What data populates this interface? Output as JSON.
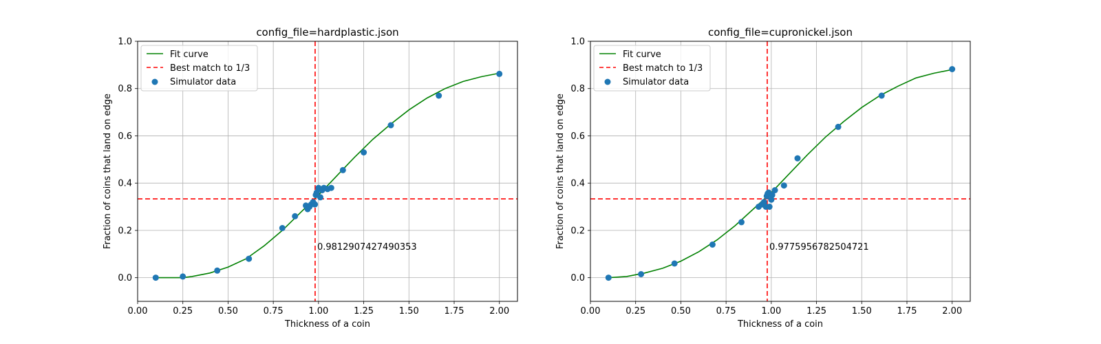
{
  "chart_data": [
    {
      "type": "scatter",
      "title": "config_file=hardplastic.json",
      "xlabel": "Thickness of a coin",
      "ylabel": "Fraction of coins that land on edge",
      "xlim": [
        0.0,
        2.1
      ],
      "ylim": [
        -0.1,
        1.0
      ],
      "xticks": [
        0.0,
        0.25,
        0.5,
        0.75,
        1.0,
        1.25,
        1.5,
        1.75,
        2.0
      ],
      "xtick_labels": [
        "0.00",
        "0.25",
        "0.50",
        "0.75",
        "1.00",
        "1.25",
        "1.50",
        "1.75",
        "2.00"
      ],
      "yticks": [
        0.0,
        0.2,
        0.4,
        0.6,
        0.8,
        1.0
      ],
      "ytick_labels": [
        "0.0",
        "0.2",
        "0.4",
        "0.6",
        "0.8",
        "1.0"
      ],
      "grid": true,
      "legend_position": "top-left",
      "legend": [
        "Fit curve",
        "Best match to 1/3",
        "Simulator data"
      ],
      "fit_curve": {
        "name": "Fit curve",
        "color": "#008000",
        "x": [
          0.1,
          0.2,
          0.25,
          0.3,
          0.4,
          0.5,
          0.6,
          0.7,
          0.8,
          0.9,
          1.0,
          1.1,
          1.2,
          1.3,
          1.4,
          1.5,
          1.6,
          1.7,
          1.8,
          1.9,
          2.0
        ],
        "y": [
          0.0,
          0.0,
          0.0,
          0.005,
          0.02,
          0.045,
          0.08,
          0.135,
          0.2,
          0.275,
          0.35,
          0.43,
          0.51,
          0.585,
          0.65,
          0.71,
          0.76,
          0.8,
          0.83,
          0.85,
          0.865
        ]
      },
      "best_match": {
        "name": "Best match to 1/3",
        "color": "#ff0000",
        "x": 0.9812907427490353,
        "y": 0.3333333333
      },
      "annotation": "0.9812907427490353",
      "simulator_data": {
        "name": "Simulator data",
        "color": "#1f77b4",
        "points": [
          [
            0.1,
            0.0
          ],
          [
            0.25,
            0.005
          ],
          [
            0.44,
            0.03
          ],
          [
            0.615,
            0.08
          ],
          [
            0.8,
            0.21
          ],
          [
            0.87,
            0.26
          ],
          [
            0.93,
            0.305
          ],
          [
            0.94,
            0.29
          ],
          [
            0.95,
            0.3
          ],
          [
            0.96,
            0.31
          ],
          [
            0.97,
            0.32
          ],
          [
            0.98,
            0.31
          ],
          [
            0.985,
            0.35
          ],
          [
            0.99,
            0.36
          ],
          [
            1.0,
            0.38
          ],
          [
            1.01,
            0.34
          ],
          [
            1.02,
            0.37
          ],
          [
            1.03,
            0.38
          ],
          [
            1.05,
            0.375
          ],
          [
            1.07,
            0.38
          ],
          [
            1.135,
            0.455
          ],
          [
            1.25,
            0.53
          ],
          [
            1.4,
            0.645
          ],
          [
            1.665,
            0.77
          ],
          [
            2.0,
            0.862
          ]
        ]
      }
    },
    {
      "type": "scatter",
      "title": "config_file=cupronickel.json",
      "xlabel": "Thickness of a coin",
      "ylabel": "Fraction of coins that land on edge",
      "xlim": [
        0.0,
        2.1
      ],
      "ylim": [
        -0.1,
        1.0
      ],
      "xticks": [
        0.0,
        0.25,
        0.5,
        0.75,
        1.0,
        1.25,
        1.5,
        1.75,
        2.0
      ],
      "xtick_labels": [
        "0.00",
        "0.25",
        "0.50",
        "0.75",
        "1.00",
        "1.25",
        "1.50",
        "1.75",
        "2.00"
      ],
      "yticks": [
        0.0,
        0.2,
        0.4,
        0.6,
        0.8,
        1.0
      ],
      "ytick_labels": [
        "0.0",
        "0.2",
        "0.4",
        "0.6",
        "0.8",
        "1.0"
      ],
      "grid": true,
      "legend_position": "top-left",
      "legend": [
        "Fit curve",
        "Best match to 1/3",
        "Simulator data"
      ],
      "fit_curve": {
        "name": "Fit curve",
        "color": "#008000",
        "x": [
          0.1,
          0.2,
          0.3,
          0.4,
          0.5,
          0.6,
          0.7,
          0.8,
          0.9,
          1.0,
          1.1,
          1.2,
          1.3,
          1.4,
          1.5,
          1.6,
          1.7,
          1.8,
          1.9,
          2.0
        ],
        "y": [
          0.0,
          0.005,
          0.02,
          0.04,
          0.07,
          0.11,
          0.16,
          0.22,
          0.29,
          0.36,
          0.44,
          0.52,
          0.595,
          0.66,
          0.72,
          0.77,
          0.81,
          0.845,
          0.865,
          0.88
        ]
      },
      "best_match": {
        "name": "Best match to 1/3",
        "color": "#ff0000",
        "x": 0.9775956782504721,
        "y": 0.3333333333
      },
      "annotation": "0.9775956782504721",
      "simulator_data": {
        "name": "Simulator data",
        "color": "#1f77b4",
        "points": [
          [
            0.1,
            0.0
          ],
          [
            0.28,
            0.015
          ],
          [
            0.465,
            0.06
          ],
          [
            0.675,
            0.14
          ],
          [
            0.835,
            0.235
          ],
          [
            0.93,
            0.3
          ],
          [
            0.95,
            0.31
          ],
          [
            0.96,
            0.32
          ],
          [
            0.97,
            0.3
          ],
          [
            0.975,
            0.345
          ],
          [
            0.98,
            0.355
          ],
          [
            0.985,
            0.36
          ],
          [
            0.99,
            0.3
          ],
          [
            1.0,
            0.33
          ],
          [
            1.005,
            0.35
          ],
          [
            1.02,
            0.37
          ],
          [
            1.07,
            0.39
          ],
          [
            1.145,
            0.505
          ],
          [
            1.37,
            0.638
          ],
          [
            1.61,
            0.77
          ],
          [
            2.0,
            0.882
          ]
        ]
      }
    }
  ]
}
